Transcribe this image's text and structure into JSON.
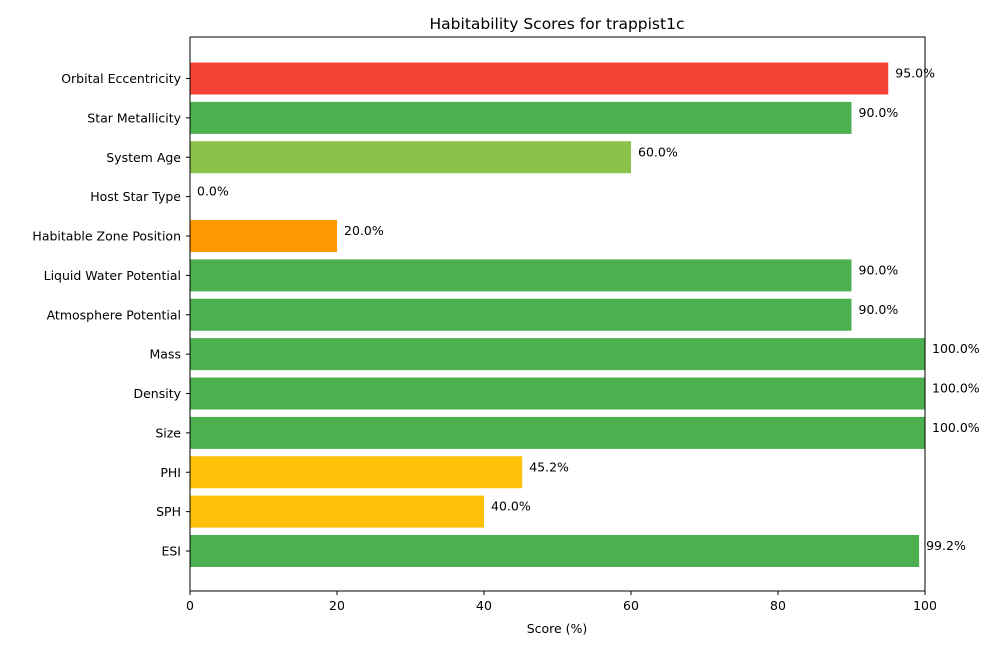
{
  "chart_data": {
    "type": "bar",
    "orientation": "horizontal",
    "title": "Habitability Scores for trappist1c",
    "xlabel": "Score (%)",
    "ylabel": "",
    "xlim": [
      0,
      100
    ],
    "xticks": [
      0,
      20,
      40,
      60,
      80,
      100
    ],
    "grid": false,
    "categories": [
      "ESI",
      "SPH",
      "PHI",
      "Size",
      "Density",
      "Mass",
      "Atmosphere Potential",
      "Liquid Water Potential",
      "Habitable Zone Position",
      "Host Star Type",
      "System Age",
      "Star Metallicity",
      "Orbital Eccentricity"
    ],
    "values": [
      99.2,
      40.0,
      45.2,
      100.0,
      100.0,
      100.0,
      90.0,
      90.0,
      20.0,
      0.0,
      60.0,
      90.0,
      95.0
    ],
    "labels": [
      "99.2%",
      "40.0%",
      "45.2%",
      "100.0%",
      "100.0%",
      "100.0%",
      "90.0%",
      "90.0%",
      "20.0%",
      "0.0%",
      "60.0%",
      "90.0%",
      "95.0%"
    ],
    "colors": [
      "#4caf50",
      "#ffc107",
      "#ffc107",
      "#4caf50",
      "#4caf50",
      "#4caf50",
      "#4caf50",
      "#4caf50",
      "#ff9800",
      "#f44336",
      "#8bc34a",
      "#4caf50",
      "#f44336"
    ]
  }
}
